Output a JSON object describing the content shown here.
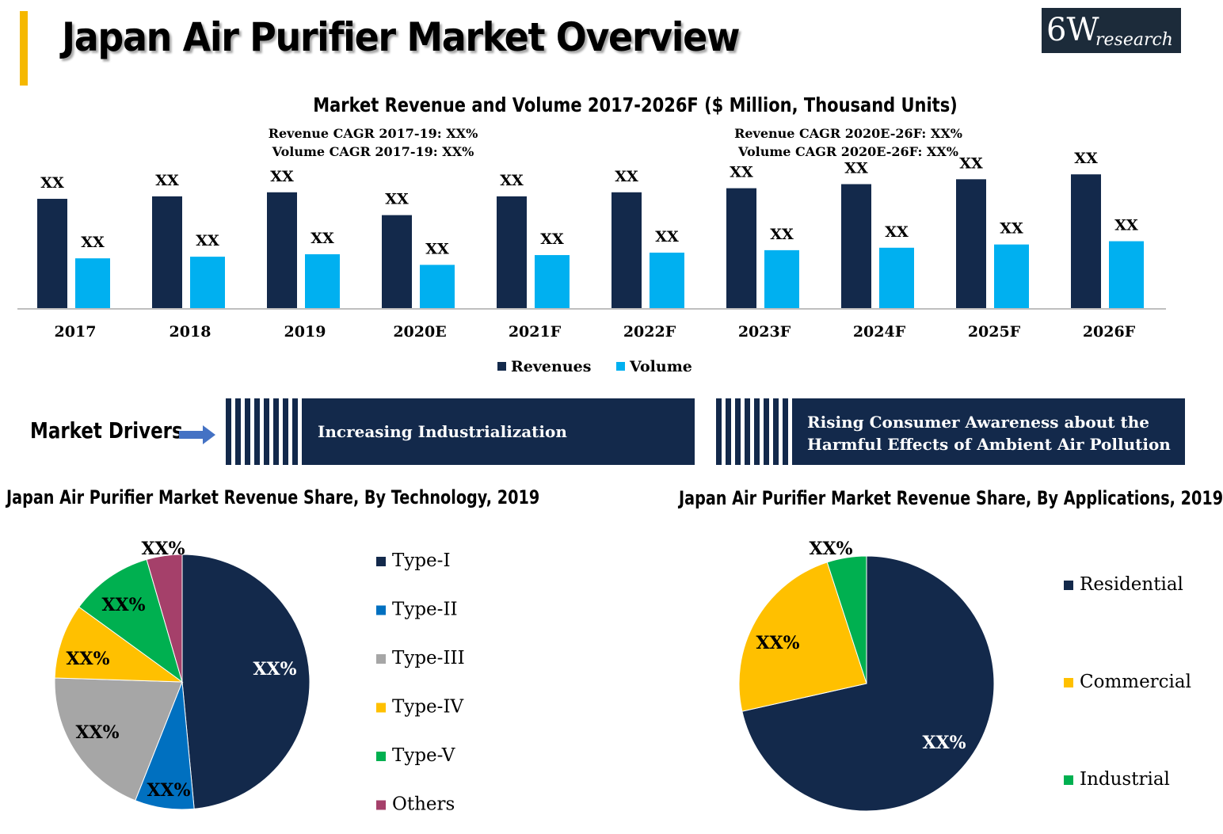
{
  "header": {
    "title": "Japan Air Purifier Market Overview",
    "logo_big": "6W",
    "logo_small": "research"
  },
  "colors": {
    "navy": "#13294b",
    "sky": "#00b0f0",
    "blue": "#0070c0",
    "gray": "#a6a6a6",
    "yellow": "#ffc000",
    "green": "#00b050",
    "maroon": "#a5406a",
    "accent": "#f5b800"
  },
  "chart_data": [
    {
      "type": "bar",
      "title": "Market Revenue and Volume 2017-2026F ($ Million, Thousand Units)",
      "annotations": [
        "Revenue CAGR 2017-19: XX%",
        "Volume CAGR 2017-19: XX%",
        "Revenue CAGR 2020E-26F: XX%",
        "Volume CAGR 2020E-26F: XX%"
      ],
      "categories": [
        "2017",
        "2018",
        "2019",
        "2020E",
        "2021F",
        "2022F",
        "2023F",
        "2024F",
        "2025F",
        "2026F"
      ],
      "series": [
        {
          "name": "Revenues",
          "color": "#13294b",
          "values": [
            135,
            138,
            143,
            115,
            138,
            143,
            148,
            153,
            159,
            165
          ],
          "labels": [
            "XX",
            "XX",
            "XX",
            "XX",
            "XX",
            "XX",
            "XX",
            "XX",
            "XX",
            "XX"
          ]
        },
        {
          "name": "Volume",
          "color": "#00b0f0",
          "values": [
            62,
            64,
            67,
            54,
            66,
            69,
            72,
            75,
            79,
            83
          ],
          "labels": [
            "XX",
            "XX",
            "XX",
            "XX",
            "XX",
            "XX",
            "XX",
            "XX",
            "XX",
            "XX"
          ]
        }
      ],
      "ylim": [
        0,
        170
      ],
      "legend": "bottom"
    },
    {
      "type": "pie",
      "title": "Japan Air Purifier Market Revenue Share, By Technology, 2019",
      "categories": [
        "Type-I",
        "Type-II",
        "Type-III",
        "Type-IV",
        "Type-V",
        "Others"
      ],
      "values": [
        48.5,
        7.5,
        19.5,
        9.5,
        10.5,
        4.5
      ],
      "labels": [
        "XX%",
        "XX%",
        "XX%",
        "XX%",
        "XX%",
        "XX%"
      ],
      "colors": [
        "#13294b",
        "#0070c0",
        "#a6a6a6",
        "#ffc000",
        "#00b050",
        "#a5406a"
      ],
      "legend": "right"
    },
    {
      "type": "pie",
      "title": "Japan Air Purifier Market Revenue Share, By Applications, 2019",
      "categories": [
        "Residential",
        "Commercial",
        "Industrial"
      ],
      "values": [
        71.5,
        23.5,
        5.0
      ],
      "labels": [
        "XX%",
        "XX%",
        "XX%"
      ],
      "colors": [
        "#13294b",
        "#ffc000",
        "#00b050"
      ],
      "legend": "right"
    }
  ],
  "drivers": {
    "label": "Market Drivers",
    "items": [
      "Increasing Industrialization",
      "Rising  Consumer Awareness about the Harmful Effects of Ambient Air Pollution"
    ]
  }
}
